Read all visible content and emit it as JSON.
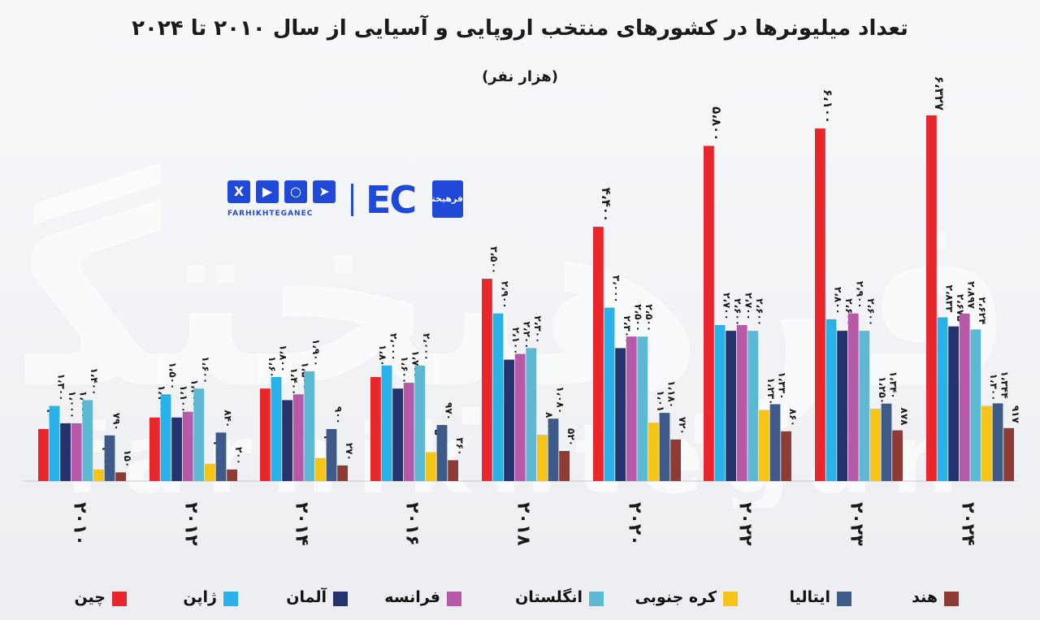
{
  "title": "تعداد میلیونرها در کشورهای منتخب اروپایی و آسیایی از سال ۲۰۱۰ تا ۲۰۲۴",
  "subtitle": "(هزار نفر)",
  "watermark": {
    "text": "فرهیختگان",
    "latin": "farhikhtegan"
  },
  "brand": {
    "url": "FARHIKHTEGANEC",
    "ec": "EC",
    "badge": "فرهیختگان",
    "social_icons": [
      "x-icon",
      "youtube-icon",
      "instagram-icon",
      "telegram-icon"
    ]
  },
  "chart_data": {
    "type": "bar",
    "categories": [
      "۲۰۱۰",
      "۲۰۱۲",
      "۲۰۱۴",
      "۲۰۱۶",
      "۲۰۱۸",
      "۲۰۲۰",
      "۲۰۲۲",
      "۲۰۲۳",
      "۲۰۲۴"
    ],
    "category_values": [
      2010,
      2012,
      2014,
      2016,
      2018,
      2020,
      2022,
      2023,
      2024
    ],
    "title": "تعداد میلیونرها در کشورهای منتخب اروپایی و آسیایی از سال ۲۰۱۰ تا ۲۰۲۴",
    "subtitle": "(هزار نفر)",
    "xlabel": "",
    "ylabel": "",
    "ylim": [
      0,
      6600
    ],
    "grid": false,
    "legend_position": "bottom",
    "series": [
      {
        "name": "چین",
        "color": "#e8262b",
        "values": [
          900,
          1100,
          1600,
          1800,
          3500,
          4400,
          5800,
          6100,
          6327
        ],
        "labels": [
          "۹۰۰",
          "۱،۱۰۰",
          "۱،۶۰۰",
          "۱،۸۰۰",
          "۳،۵۰۰",
          "۴،۴۰۰",
          "۵،۸۰۰",
          "۶،۱۰۰",
          "۶،۳۲۷"
        ]
      },
      {
        "name": "ژاپن",
        "color": "#29b1e9",
        "values": [
          1300,
          1500,
          1800,
          2000,
          2900,
          3000,
          2700,
          2800,
          2833
        ],
        "labels": [
          "۱،۳۰۰",
          "۱،۵۰۰",
          "۱،۸۰۰",
          "۲،۰۰۰",
          "۲،۹۰۰",
          "۳،۰۰۰",
          "۲،۷۰۰",
          "۲،۸۰۰",
          "۲،۸۳۳"
        ]
      },
      {
        "name": "آلمان",
        "color": "#24336e",
        "values": [
          1000,
          1100,
          1400,
          1600,
          2100,
          2300,
          2600,
          2600,
          2675
        ],
        "labels": [
          "۱،۰۰۰",
          "۱،۱۰۰",
          "۱،۴۰۰",
          "۱،۶۰۰",
          "۲،۱۰۰",
          "۲،۳۰۰",
          "۲،۶۰۰",
          "۲،۶۰۰",
          "۲،۶۷۵"
        ]
      },
      {
        "name": "فرانسه",
        "color": "#b659a8",
        "values": [
          1000,
          1200,
          1500,
          1700,
          2200,
          2500,
          2700,
          2900,
          2897
        ],
        "labels": [
          "۱،۰۰۰",
          "۱،۲۰۰",
          "۱،۵۰۰",
          "۱،۷۰۰",
          "۲،۲۰۰",
          "۲،۵۰۰",
          "۲،۷۰۰",
          "۲،۹۰۰",
          "۲،۸۹۷"
        ]
      },
      {
        "name": "انگلستان",
        "color": "#5cb8d3",
        "values": [
          1400,
          1600,
          1900,
          2000,
          2300,
          2500,
          2600,
          2600,
          2624
        ],
        "labels": [
          "۱،۴۰۰",
          "۱،۶۰۰",
          "۱،۹۰۰",
          "۲،۰۰۰",
          "۲،۳۰۰",
          "۲،۵۰۰",
          "۲،۶۰۰",
          "۲،۶۰۰",
          "۲،۶۲۴"
        ]
      },
      {
        "name": "کره جنوبی",
        "color": "#f6c318",
        "values": [
          200,
          300,
          400,
          500,
          800,
          1010,
          1230,
          1250,
          1300
        ],
        "labels": [
          "۲۰۰",
          "۳۰۰",
          "۴۰۰",
          "۵۰۰",
          "۸۰۰",
          "۱،۰۱۰",
          "۱،۲۳۰",
          "۱،۲۵۰",
          "۱،۳۰۰"
        ]
      },
      {
        "name": "ایتالیا",
        "color": "#3d5a88",
        "values": [
          790,
          840,
          900,
          970,
          1080,
          1180,
          1330,
          1340,
          1344
        ],
        "labels": [
          "۷۹۰",
          "۸۴۰",
          "۹۰۰",
          "۹۷۰",
          "۱،۰۸۰",
          "۱،۱۸۰",
          "۱،۳۳۰",
          "۱،۳۴۰",
          "۱،۳۴۴"
        ]
      },
      {
        "name": "هند",
        "color": "#8e3a35",
        "values": [
          150,
          200,
          270,
          360,
          520,
          720,
          860,
          878,
          917
        ],
        "labels": [
          "۱۵۰",
          "۲۰۰",
          "۲۷۰",
          "۳۶۰",
          "۵۲۰",
          "۷۲۰",
          "۸۶۰",
          "۸۷۸",
          "۹۱۷"
        ]
      }
    ]
  }
}
